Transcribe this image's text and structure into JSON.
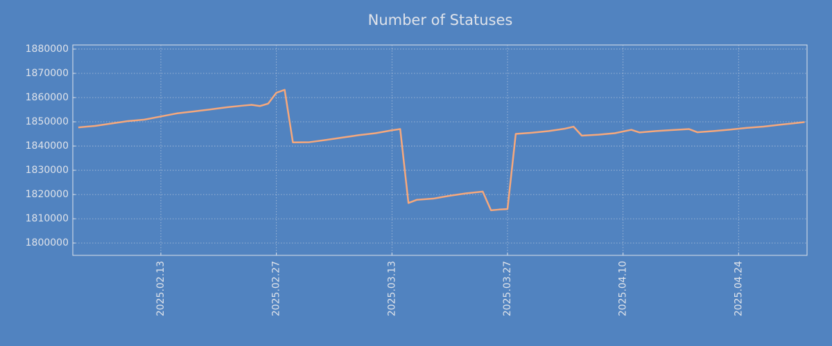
{
  "chart_data": {
    "type": "line",
    "title": "Number of Statuses",
    "x": [
      "2025-02-03",
      "2025-02-05",
      "2025-02-07",
      "2025-02-09",
      "2025-02-11",
      "2025-02-13",
      "2025-02-15",
      "2025-02-17",
      "2025-02-19",
      "2025-02-21",
      "2025-02-23",
      "2025-02-24",
      "2025-02-25",
      "2025-02-26",
      "2025-02-27",
      "2025-02-28",
      "2025-03-01",
      "2025-03-03",
      "2025-03-05",
      "2025-03-07",
      "2025-03-09",
      "2025-03-11",
      "2025-03-13",
      "2025-03-14",
      "2025-03-15",
      "2025-03-16",
      "2025-03-18",
      "2025-03-20",
      "2025-03-22",
      "2025-03-24",
      "2025-03-25",
      "2025-03-26",
      "2025-03-27",
      "2025-03-28",
      "2025-03-30",
      "2025-04-01",
      "2025-04-03",
      "2025-04-04",
      "2025-04-05",
      "2025-04-07",
      "2025-04-09",
      "2025-04-10",
      "2025-04-11",
      "2025-04-12",
      "2025-04-14",
      "2025-04-16",
      "2025-04-18",
      "2025-04-19",
      "2025-04-21",
      "2025-04-23",
      "2025-04-25",
      "2025-04-27",
      "2025-04-29",
      "2025-05-01",
      "2025-05-02"
    ],
    "series": [
      {
        "name": "Number of Statuses",
        "color": "#f6a87c",
        "values": [
          1847700,
          1848300,
          1849300,
          1850300,
          1850900,
          1852200,
          1853500,
          1854300,
          1855100,
          1856000,
          1856700,
          1857000,
          1856500,
          1857500,
          1862000,
          1863200,
          1841500,
          1841600,
          1842500,
          1843500,
          1844500,
          1845300,
          1846500,
          1847000,
          1816500,
          1817800,
          1818300,
          1819500,
          1820500,
          1821200,
          1813500,
          1813800,
          1814000,
          1845000,
          1845500,
          1846200,
          1847200,
          1848000,
          1844300,
          1844700,
          1845300,
          1846000,
          1846700,
          1845600,
          1846200,
          1846600,
          1847000,
          1845700,
          1846200,
          1846800,
          1847500,
          1848000,
          1848800,
          1849500,
          1849900
        ]
      }
    ],
    "xlim": [
      "2025-02-02T08:00",
      "2025-05-02T07:00"
    ],
    "xticks": [
      {
        "value": "2025-02-13",
        "label": "2025.02.13"
      },
      {
        "value": "2025-02-27",
        "label": "2025.02.27"
      },
      {
        "value": "2025-03-13",
        "label": "2025.03.13"
      },
      {
        "value": "2025-03-27",
        "label": "2025.03.27"
      },
      {
        "value": "2025-04-10",
        "label": "2025.04.10"
      },
      {
        "value": "2025-04-24",
        "label": "2025.04.24"
      }
    ],
    "ylim": [
      1794900,
      1881700
    ],
    "yticks": [
      1800000,
      1810000,
      1820000,
      1830000,
      1840000,
      1850000,
      1860000,
      1870000,
      1880000
    ],
    "grid": true
  }
}
